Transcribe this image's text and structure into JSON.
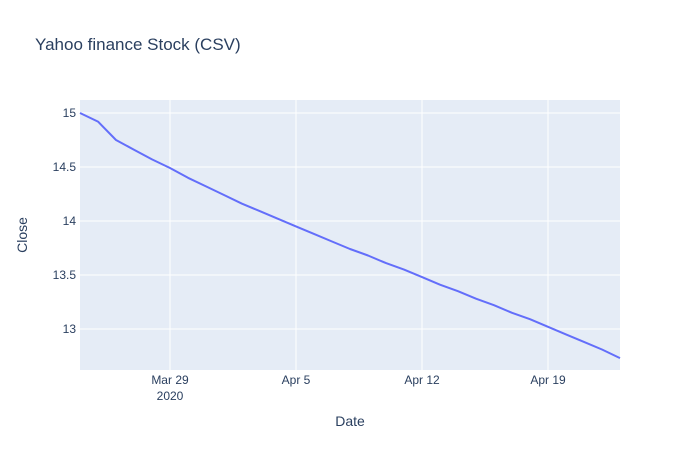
{
  "chart_data": {
    "type": "line",
    "title": "Yahoo finance Stock (CSV)",
    "xlabel": "Date",
    "ylabel": "Close",
    "x_ticks": [
      {
        "date": "2020-03-29",
        "label": "Mar 29",
        "sublabel": "2020"
      },
      {
        "date": "2020-04-05",
        "label": "Apr 5",
        "sublabel": ""
      },
      {
        "date": "2020-04-12",
        "label": "Apr 12",
        "sublabel": ""
      },
      {
        "date": "2020-04-19",
        "label": "Apr 19",
        "sublabel": ""
      }
    ],
    "y_ticks": [
      {
        "value": 13,
        "label": "13"
      },
      {
        "value": 13.5,
        "label": "13.5"
      },
      {
        "value": 14,
        "label": "14"
      },
      {
        "value": 14.5,
        "label": "14.5"
      },
      {
        "value": 15,
        "label": "15"
      }
    ],
    "xlim": [
      "2020-03-24",
      "2020-04-23"
    ],
    "ylim": [
      12.62,
      15.12
    ],
    "grid": true,
    "series": [
      {
        "color": "#636efa",
        "x": [
          "2020-03-24",
          "2020-03-25",
          "2020-03-26",
          "2020-03-27",
          "2020-03-28",
          "2020-03-29",
          "2020-03-30",
          "2020-03-31",
          "2020-04-01",
          "2020-04-02",
          "2020-04-03",
          "2020-04-04",
          "2020-04-05",
          "2020-04-06",
          "2020-04-07",
          "2020-04-08",
          "2020-04-09",
          "2020-04-10",
          "2020-04-11",
          "2020-04-12",
          "2020-04-13",
          "2020-04-14",
          "2020-04-15",
          "2020-04-16",
          "2020-04-17",
          "2020-04-18",
          "2020-04-19",
          "2020-04-20",
          "2020-04-21",
          "2020-04-22",
          "2020-04-23"
        ],
        "values": [
          15.0,
          14.92,
          14.75,
          14.66,
          14.57,
          14.49,
          14.4,
          14.32,
          14.24,
          14.16,
          14.09,
          14.02,
          13.95,
          13.88,
          13.81,
          13.74,
          13.68,
          13.61,
          13.55,
          13.48,
          13.41,
          13.35,
          13.28,
          13.22,
          13.15,
          13.09,
          13.02,
          12.95,
          12.88,
          12.81,
          12.73
        ]
      }
    ]
  }
}
